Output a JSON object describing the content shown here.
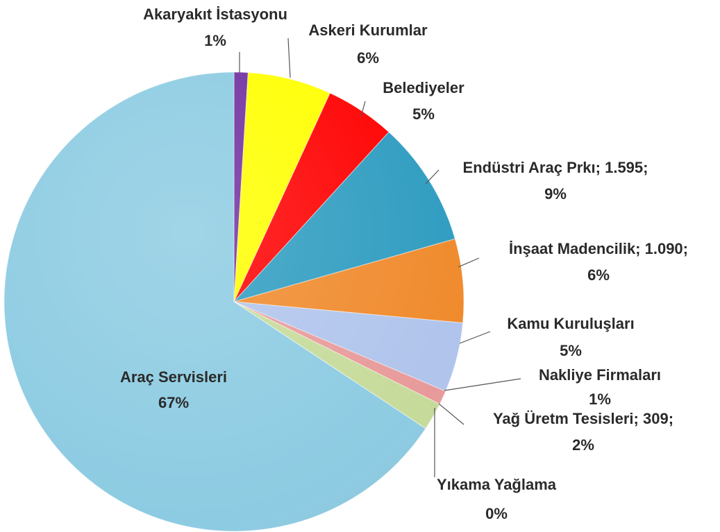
{
  "chart_data": {
    "type": "pie",
    "categories": [
      "Akaryakıt İstasyonu",
      "Askeri Kurumlar",
      "Belediyeler",
      "Endüstri Araç Prkı; 1.595;",
      "İnşaat Madencilik; 1.090;",
      "Kamu Kuruluşları",
      "Nakliye Firmaları",
      "Yağ Üretm Tesisleri; 309;",
      "Yıkama Yağlama",
      "Araç Servisleri"
    ],
    "values": [
      1,
      6,
      5,
      9,
      6,
      5,
      1,
      2,
      0,
      67
    ],
    "value_labels": [
      "1%",
      "6%",
      "5%",
      "9%",
      "6%",
      "5%",
      "1%",
      "2%",
      "0%",
      "67%"
    ],
    "colors": [
      "#7030a0",
      "#ffff00",
      "#ff0000",
      "#2e9cc0",
      "#f08a2c",
      "#b0c4ec",
      "#e89a9a",
      "#c6db9a",
      "#efe3c8",
      "#8ccbe2"
    ]
  }
}
